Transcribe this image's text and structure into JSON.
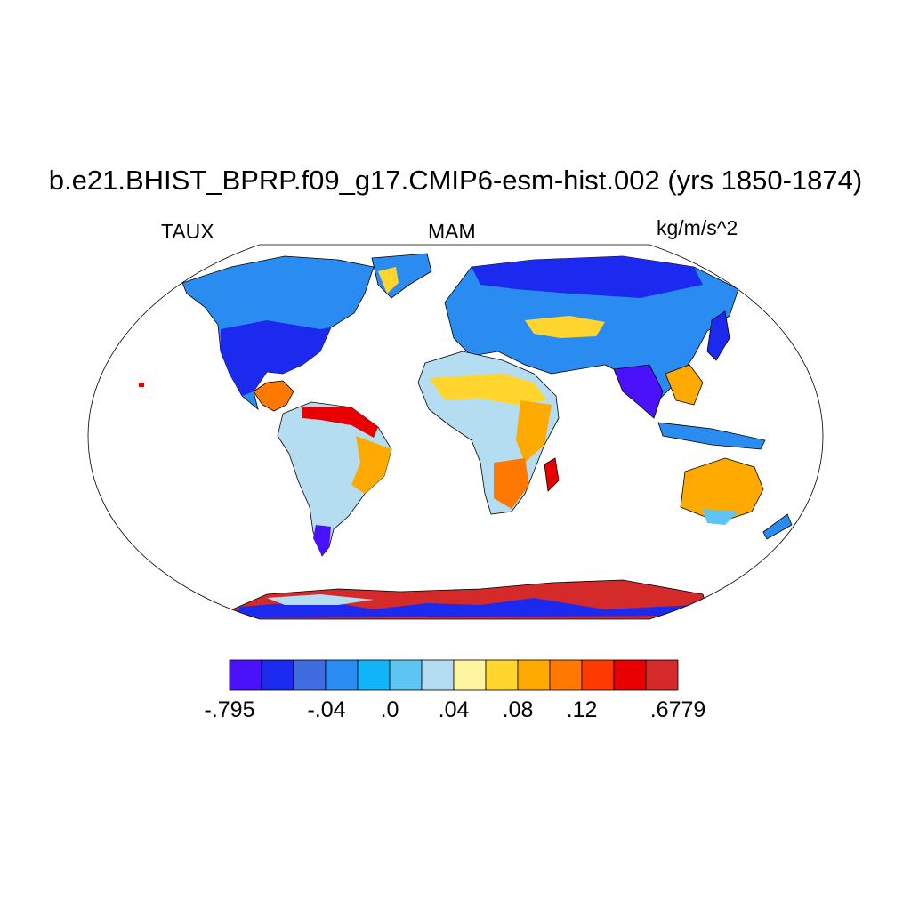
{
  "title": "b.e21.BHIST_BPRP.f09_g17.CMIP6-esm-hist.002 (yrs 1850-1874)",
  "subtitle_left": "TAUX",
  "subtitle_center": "MAM",
  "subtitle_right": "kg/m/s^2",
  "projection": "Robinson",
  "colorbar": {
    "colors": [
      "#4A12FA",
      "#1C2AF0",
      "#3F6DE0",
      "#2A8CF0",
      "#12B4F8",
      "#5EC4F2",
      "#B4DDF2",
      "#FFF5A0",
      "#FFD52E",
      "#FFAA00",
      "#FF7800",
      "#FF3A00",
      "#E80000",
      "#D42A2A"
    ],
    "labels": [
      ".795",
      "-.04",
      ".0",
      ".04",
      ".08",
      ".12",
      ".6779"
    ],
    "label_prefix_first": "-"
  }
}
